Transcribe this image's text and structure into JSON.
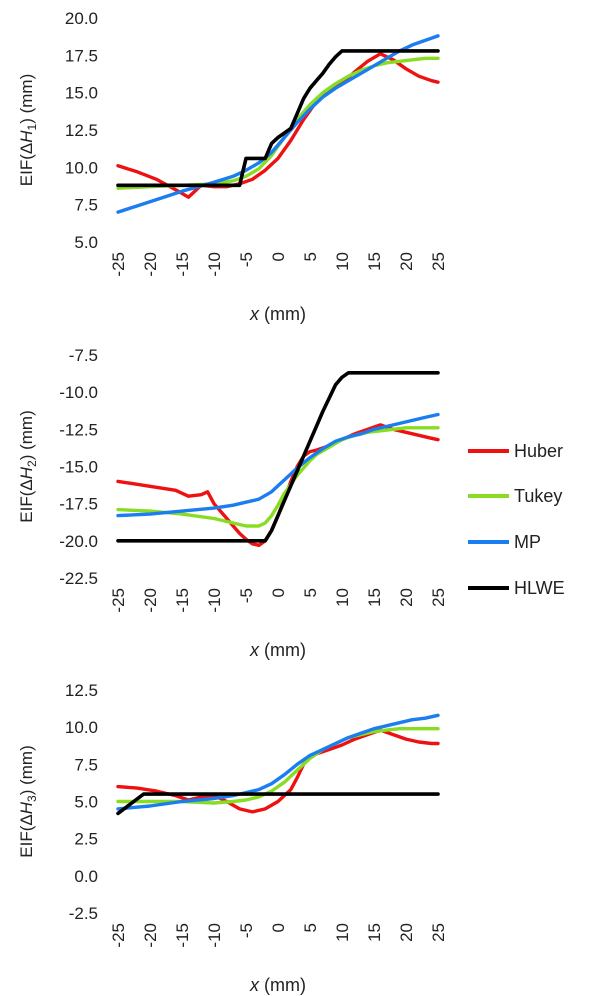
{
  "chart_data": [
    {
      "type": "line",
      "ylabel": "EIF(ΔH1) (mm)",
      "ylabel_parts": [
        "EIF(Δ",
        "H",
        "1",
        ") (mm)"
      ],
      "xlabel_parts": [
        "x",
        " (mm)"
      ],
      "xlim": [
        -25,
        25
      ],
      "ylim": [
        5.0,
        20.0
      ],
      "xticks": [
        "-25",
        "-20",
        "-15",
        "-10",
        "-5",
        "0",
        "5",
        "10",
        "15",
        "20",
        "25"
      ],
      "yticks": [
        "5.0",
        "7.5",
        "10.0",
        "12.5",
        "15.0",
        "17.5",
        "20.0"
      ],
      "grid": false,
      "series": [
        {
          "name": "Huber",
          "x": [
            -25,
            -22,
            -19,
            -16,
            -14,
            -13,
            -12,
            -10,
            -8,
            -6,
            -4,
            -2,
            0,
            2,
            4,
            6,
            8,
            10,
            12,
            14,
            16,
            18,
            20,
            22,
            24,
            25
          ],
          "y": [
            10.1,
            9.7,
            9.2,
            8.5,
            8.0,
            8.4,
            8.8,
            8.7,
            8.7,
            8.9,
            9.2,
            9.8,
            10.6,
            11.8,
            13.2,
            14.4,
            15.1,
            15.6,
            16.4,
            17.1,
            17.6,
            17.2,
            16.6,
            16.1,
            15.8,
            15.7
          ]
        },
        {
          "name": "Tukey",
          "x": [
            -25,
            -20,
            -15,
            -10,
            -7,
            -5,
            -3,
            -1,
            1,
            3,
            5,
            7,
            9,
            11,
            13,
            15,
            17,
            19,
            21,
            23,
            25
          ],
          "y": [
            8.6,
            8.7,
            8.8,
            8.9,
            9.1,
            9.4,
            9.9,
            10.8,
            12.0,
            13.2,
            14.2,
            15.0,
            15.6,
            16.1,
            16.5,
            16.8,
            17.0,
            17.1,
            17.2,
            17.3,
            17.3
          ]
        },
        {
          "name": "MP",
          "x": [
            -25,
            -20,
            -15,
            -10,
            -7,
            -5,
            -3,
            -1,
            1,
            3,
            5,
            7,
            9,
            11,
            13,
            15,
            17,
            19,
            21,
            23,
            25
          ],
          "y": [
            7.0,
            7.7,
            8.4,
            9.0,
            9.4,
            9.8,
            10.3,
            11.0,
            12.0,
            13.0,
            13.9,
            14.7,
            15.3,
            15.8,
            16.3,
            16.8,
            17.3,
            17.8,
            18.2,
            18.5,
            18.8
          ]
        },
        {
          "name": "HLWE",
          "x": [
            -25,
            -6,
            -5,
            -2,
            -1,
            0,
            1,
            2,
            3,
            4,
            5,
            6,
            7,
            8,
            9,
            10,
            11,
            25
          ],
          "y": [
            8.8,
            8.8,
            10.6,
            10.6,
            11.6,
            12.0,
            12.3,
            12.6,
            13.6,
            14.6,
            15.3,
            15.8,
            16.3,
            16.9,
            17.4,
            17.8,
            17.8,
            17.8
          ]
        }
      ]
    },
    {
      "type": "line",
      "ylabel": "EIF(ΔH2) (mm)",
      "ylabel_parts": [
        "EIF(Δ",
        "H",
        "2",
        ") (mm)"
      ],
      "xlabel_parts": [
        "x",
        " (mm)"
      ],
      "xlim": [
        -25,
        25
      ],
      "ylim": [
        -22.5,
        -7.5
      ],
      "xticks": [
        "-25",
        "-20",
        "-15",
        "-10",
        "-5",
        "0",
        "5",
        "10",
        "15",
        "20",
        "25"
      ],
      "yticks": [
        "-22.5",
        "-20.0",
        "-17.5",
        "-15.0",
        "-12.5",
        "-10.0",
        "-7.5"
      ],
      "grid": false,
      "series": [
        {
          "name": "Huber",
          "x": [
            -25,
            -22,
            -19,
            -16,
            -14,
            -12,
            -11,
            -10,
            -9,
            -8,
            -7,
            -6,
            -5,
            -4,
            -3,
            -2,
            -1,
            0,
            1,
            2,
            3,
            4,
            5,
            6,
            8,
            10,
            12,
            14,
            16,
            18,
            20,
            22,
            24,
            25
          ],
          "y": [
            -16.0,
            -16.2,
            -16.4,
            -16.6,
            -17.0,
            -16.9,
            -16.7,
            -17.5,
            -18.0,
            -18.5,
            -19.0,
            -19.5,
            -19.9,
            -20.2,
            -20.3,
            -20.0,
            -19.3,
            -18.3,
            -17.2,
            -16.0,
            -15.0,
            -14.3,
            -14.0,
            -13.9,
            -13.6,
            -13.2,
            -12.8,
            -12.5,
            -12.2,
            -12.5,
            -12.7,
            -12.9,
            -13.1,
            -13.2
          ]
        },
        {
          "name": "Tukey",
          "x": [
            -25,
            -20,
            -15,
            -10,
            -7,
            -5,
            -3,
            -2,
            -1,
            0,
            1,
            2,
            3,
            4,
            5,
            6,
            8,
            10,
            12,
            14,
            16,
            18,
            20,
            22,
            25
          ],
          "y": [
            -17.9,
            -18.0,
            -18.2,
            -18.5,
            -18.8,
            -19.0,
            -19.0,
            -18.8,
            -18.3,
            -17.6,
            -16.8,
            -16.2,
            -15.6,
            -15.1,
            -14.6,
            -14.2,
            -13.7,
            -13.2,
            -12.9,
            -12.7,
            -12.6,
            -12.5,
            -12.4,
            -12.4,
            -12.4
          ]
        },
        {
          "name": "MP",
          "x": [
            -25,
            -20,
            -15,
            -10,
            -7,
            -5,
            -3,
            -1,
            0,
            1,
            3,
            5,
            7,
            9,
            11,
            13,
            15,
            17,
            19,
            21,
            23,
            25
          ],
          "y": [
            -18.3,
            -18.2,
            -18.0,
            -17.8,
            -17.6,
            -17.4,
            -17.2,
            -16.7,
            -16.3,
            -15.9,
            -15.1,
            -14.4,
            -13.8,
            -13.3,
            -13.0,
            -12.8,
            -12.5,
            -12.3,
            -12.1,
            -11.9,
            -11.7,
            -11.5
          ]
        },
        {
          "name": "HLWE",
          "x": [
            -25,
            -2,
            -1,
            0,
            1,
            2,
            3,
            4,
            5,
            6,
            7,
            8,
            9,
            10,
            11,
            25
          ],
          "y": [
            -20.0,
            -20.0,
            -19.3,
            -18.3,
            -17.3,
            -16.3,
            -15.3,
            -14.3,
            -13.3,
            -12.3,
            -11.3,
            -10.4,
            -9.5,
            -9.0,
            -8.7,
            -8.7
          ]
        }
      ]
    },
    {
      "type": "line",
      "ylabel": "EIF(ΔH3) (mm)",
      "ylabel_parts": [
        "EIF(Δ",
        "H",
        "3",
        ") (mm)"
      ],
      "xlabel_parts": [
        "x",
        " (mm)"
      ],
      "xlim": [
        -25,
        25
      ],
      "ylim": [
        -2.5,
        12.5
      ],
      "xticks": [
        "-25",
        "-20",
        "-15",
        "-10",
        "-5",
        "0",
        "5",
        "10",
        "15",
        "20",
        "25"
      ],
      "yticks": [
        "-2.5",
        "0.0",
        "2.5",
        "5.0",
        "7.5",
        "10.0",
        "12.5"
      ],
      "grid": false,
      "series": [
        {
          "name": "Huber",
          "x": [
            -25,
            -22,
            -19,
            -16,
            -14,
            -12,
            -10,
            -8,
            -6,
            -4,
            -2,
            0,
            2,
            3,
            4,
            5,
            6,
            8,
            10,
            12,
            14,
            16,
            18,
            20,
            22,
            24,
            25
          ],
          "y": [
            6.0,
            5.9,
            5.7,
            5.4,
            5.1,
            5.3,
            5.4,
            5.0,
            4.5,
            4.3,
            4.5,
            5.0,
            5.8,
            6.6,
            7.5,
            8.0,
            8.2,
            8.5,
            8.8,
            9.2,
            9.5,
            9.8,
            9.5,
            9.2,
            9.0,
            8.9,
            8.9
          ]
        },
        {
          "name": "Tukey",
          "x": [
            -25,
            -20,
            -15,
            -10,
            -7,
            -5,
            -3,
            -1,
            1,
            3,
            5,
            7,
            9,
            11,
            13,
            15,
            17,
            19,
            21,
            23,
            25
          ],
          "y": [
            5.0,
            5.0,
            5.0,
            4.9,
            5.0,
            5.1,
            5.3,
            5.7,
            6.3,
            7.1,
            7.9,
            8.5,
            8.9,
            9.3,
            9.5,
            9.7,
            9.8,
            9.9,
            9.9,
            9.9,
            9.9
          ]
        },
        {
          "name": "MP",
          "x": [
            -25,
            -20,
            -15,
            -10,
            -7,
            -5,
            -3,
            -1,
            1,
            3,
            5,
            7,
            9,
            11,
            13,
            15,
            17,
            19,
            21,
            23,
            25
          ],
          "y": [
            4.5,
            4.7,
            5.0,
            5.2,
            5.4,
            5.6,
            5.8,
            6.2,
            6.8,
            7.5,
            8.1,
            8.5,
            8.9,
            9.3,
            9.6,
            9.9,
            10.1,
            10.3,
            10.5,
            10.6,
            10.8
          ]
        },
        {
          "name": "HLWE",
          "x": [
            -25,
            -21,
            -20,
            25
          ],
          "y": [
            4.2,
            5.5,
            5.5,
            5.5
          ]
        }
      ]
    }
  ],
  "legend": {
    "placement": "right",
    "items": [
      {
        "label": "Huber",
        "color": "#ee1111"
      },
      {
        "label": "Tukey",
        "color": "#88dd22"
      },
      {
        "label": "MP",
        "color": "#1a7ef0"
      },
      {
        "label": "HLWE",
        "color": "#000000"
      }
    ]
  },
  "colors": {
    "Huber": "#ee1111",
    "Tukey": "#88dd22",
    "MP": "#1a7ef0",
    "HLWE": "#000000"
  }
}
